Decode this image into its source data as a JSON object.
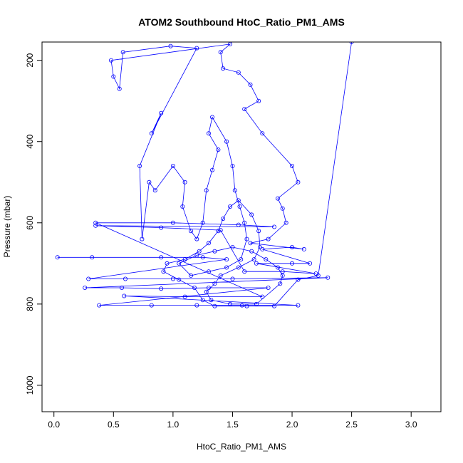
{
  "chart_data": {
    "type": "scatter",
    "title": "ATOM2 Southbound HtoC_Ratio_PM1_AMS",
    "xlabel": "HtoC_Ratio_PM1_AMS",
    "ylabel": "Pressure (mbar)",
    "xlim": [
      -0.1,
      3.25
    ],
    "ylim": [
      1065,
      155
    ],
    "y_reversed": true,
    "x_ticks": [
      0.0,
      0.5,
      1.0,
      1.5,
      2.0,
      2.5,
      3.0
    ],
    "x_tick_labels": [
      "0.0",
      "0.5",
      "1.0",
      "1.5",
      "2.0",
      "2.5",
      "3.0"
    ],
    "y_ticks": [
      200,
      400,
      600,
      800,
      1000
    ],
    "y_tick_labels": [
      "200",
      "400",
      "600",
      "800",
      "1000"
    ],
    "series_color": "#0000ff",
    "marker": "open-circle",
    "connected": true,
    "grid": false,
    "points": [
      {
        "x": 0.03,
        "y": 685
      },
      {
        "x": 0.32,
        "y": 685
      },
      {
        "x": 0.9,
        "y": 685
      },
      {
        "x": 1.25,
        "y": 685
      },
      {
        "x": 1.45,
        "y": 690
      },
      {
        "x": 0.29,
        "y": 738
      },
      {
        "x": 0.6,
        "y": 738
      },
      {
        "x": 1.0,
        "y": 738
      },
      {
        "x": 1.5,
        "y": 738
      },
      {
        "x": 2.3,
        "y": 735
      },
      {
        "x": 0.26,
        "y": 760
      },
      {
        "x": 0.57,
        "y": 760
      },
      {
        "x": 0.9,
        "y": 762
      },
      {
        "x": 1.3,
        "y": 760
      },
      {
        "x": 1.8,
        "y": 760
      },
      {
        "x": 0.38,
        "y": 803
      },
      {
        "x": 0.82,
        "y": 803
      },
      {
        "x": 1.2,
        "y": 803
      },
      {
        "x": 1.58,
        "y": 803
      },
      {
        "x": 2.05,
        "y": 803
      },
      {
        "x": 0.59,
        "y": 780
      },
      {
        "x": 1.1,
        "y": 782
      },
      {
        "x": 1.75,
        "y": 782
      },
      {
        "x": 0.35,
        "y": 600
      },
      {
        "x": 1.0,
        "y": 600
      },
      {
        "x": 1.55,
        "y": 605
      },
      {
        "x": 1.85,
        "y": 610
      },
      {
        "x": 0.35,
        "y": 607
      },
      {
        "x": 0.9,
        "y": 612
      },
      {
        "x": 1.4,
        "y": 618
      },
      {
        "x": 1.6,
        "y": 720
      },
      {
        "x": 1.92,
        "y": 720
      },
      {
        "x": 2.2,
        "y": 725
      },
      {
        "x": 1.7,
        "y": 700
      },
      {
        "x": 2.0,
        "y": 700
      },
      {
        "x": 2.15,
        "y": 700
      },
      {
        "x": 1.75,
        "y": 665
      },
      {
        "x": 2.0,
        "y": 660
      },
      {
        "x": 2.1,
        "y": 665
      },
      {
        "x": 1.65,
        "y": 650
      },
      {
        "x": 1.8,
        "y": 640
      },
      {
        "x": 1.95,
        "y": 600
      },
      {
        "x": 1.92,
        "y": 565
      },
      {
        "x": 1.88,
        "y": 540
      },
      {
        "x": 2.05,
        "y": 500
      },
      {
        "x": 2.0,
        "y": 460
      },
      {
        "x": 1.75,
        "y": 380
      },
      {
        "x": 1.6,
        "y": 320
      },
      {
        "x": 1.72,
        "y": 300
      },
      {
        "x": 1.65,
        "y": 260
      },
      {
        "x": 1.55,
        "y": 230
      },
      {
        "x": 1.42,
        "y": 220
      },
      {
        "x": 1.4,
        "y": 180
      },
      {
        "x": 1.48,
        "y": 160
      },
      {
        "x": 0.48,
        "y": 200
      },
      {
        "x": 0.5,
        "y": 240
      },
      {
        "x": 0.55,
        "y": 270
      },
      {
        "x": 0.58,
        "y": 180
      },
      {
        "x": 0.98,
        "y": 165
      },
      {
        "x": 1.2,
        "y": 170
      },
      {
        "x": 0.82,
        "y": 380
      },
      {
        "x": 0.9,
        "y": 330
      },
      {
        "x": 0.72,
        "y": 460
      },
      {
        "x": 0.74,
        "y": 640
      },
      {
        "x": 0.8,
        "y": 500
      },
      {
        "x": 0.85,
        "y": 520
      },
      {
        "x": 1.0,
        "y": 460
      },
      {
        "x": 1.1,
        "y": 500
      },
      {
        "x": 1.08,
        "y": 560
      },
      {
        "x": 1.15,
        "y": 620
      },
      {
        "x": 1.2,
        "y": 640
      },
      {
        "x": 1.25,
        "y": 600
      },
      {
        "x": 1.28,
        "y": 520
      },
      {
        "x": 1.33,
        "y": 470
      },
      {
        "x": 1.38,
        "y": 420
      },
      {
        "x": 1.3,
        "y": 380
      },
      {
        "x": 1.33,
        "y": 340
      },
      {
        "x": 1.45,
        "y": 400
      },
      {
        "x": 1.5,
        "y": 460
      },
      {
        "x": 1.52,
        "y": 520
      },
      {
        "x": 1.56,
        "y": 560
      },
      {
        "x": 1.6,
        "y": 600
      },
      {
        "x": 1.62,
        "y": 640
      },
      {
        "x": 1.57,
        "y": 690
      },
      {
        "x": 1.45,
        "y": 710
      },
      {
        "x": 1.3,
        "y": 720
      },
      {
        "x": 1.15,
        "y": 730
      },
      {
        "x": 1.05,
        "y": 700
      },
      {
        "x": 1.2,
        "y": 680
      },
      {
        "x": 1.35,
        "y": 670
      },
      {
        "x": 1.5,
        "y": 660
      },
      {
        "x": 1.66,
        "y": 670
      },
      {
        "x": 1.78,
        "y": 690
      },
      {
        "x": 1.88,
        "y": 710
      },
      {
        "x": 1.92,
        "y": 730
      },
      {
        "x": 1.9,
        "y": 750
      },
      {
        "x": 1.7,
        "y": 800
      },
      {
        "x": 1.48,
        "y": 800
      },
      {
        "x": 1.32,
        "y": 790
      },
      {
        "x": 1.28,
        "y": 770
      },
      {
        "x": 1.35,
        "y": 750
      },
      {
        "x": 1.4,
        "y": 730
      },
      {
        "x": 1.55,
        "y": 710
      },
      {
        "x": 1.68,
        "y": 690
      },
      {
        "x": 1.73,
        "y": 660
      },
      {
        "x": 1.72,
        "y": 620
      },
      {
        "x": 1.66,
        "y": 580
      },
      {
        "x": 1.55,
        "y": 545
      },
      {
        "x": 1.48,
        "y": 560
      },
      {
        "x": 1.42,
        "y": 590
      },
      {
        "x": 1.38,
        "y": 620
      },
      {
        "x": 1.3,
        "y": 650
      },
      {
        "x": 1.22,
        "y": 670
      },
      {
        "x": 1.1,
        "y": 690
      },
      {
        "x": 0.95,
        "y": 700
      },
      {
        "x": 0.92,
        "y": 720
      },
      {
        "x": 1.05,
        "y": 740
      },
      {
        "x": 1.18,
        "y": 760
      },
      {
        "x": 1.25,
        "y": 790
      },
      {
        "x": 1.35,
        "y": 805
      },
      {
        "x": 1.62,
        "y": 805
      },
      {
        "x": 1.85,
        "y": 805
      },
      {
        "x": 2.05,
        "y": 740
      },
      {
        "x": 2.22,
        "y": 730
      },
      {
        "x": 2.5,
        "y": 155
      }
    ]
  }
}
